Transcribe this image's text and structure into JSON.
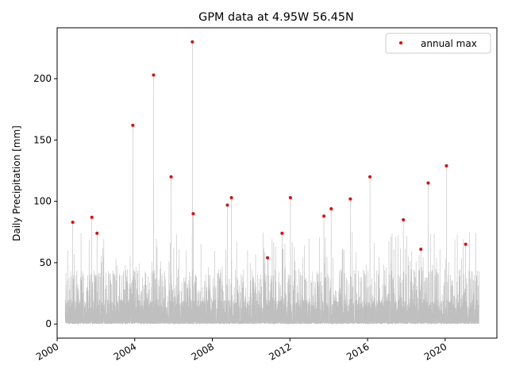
{
  "chart_data": {
    "type": "line",
    "title": "GPM data at 4.95W 56.45N",
    "xlabel": "",
    "ylabel": "Daily Precipitation [mm]",
    "xlim": [
      "2000-01-01",
      "2022-09-01"
    ],
    "ylim": [
      -11.5,
      241.5
    ],
    "x_ticks": [
      "2000",
      "2004",
      "2008",
      "2012",
      "2016",
      "2020"
    ],
    "y_ticks": [
      0,
      50,
      100,
      150,
      200
    ],
    "grid": false,
    "legend_position": "upper right",
    "series": [
      {
        "style": "line",
        "color": "#bfbfbf",
        "x_range": [
          "2000-06-01",
          "2021-09-30"
        ],
        "x": [
          "2000-10-20",
          "2001-10-15",
          "2002-01-20",
          "2003-11-25",
          "2004-12-20",
          "2005-11-15",
          "2006-12-20",
          "2007-01-05",
          "2008-10-10",
          "2008-12-25",
          "2010-11-05",
          "2011-08-05",
          "2012-01-10",
          "2013-10-01",
          "2014-02-15",
          "2015-02-10",
          "2016-02-15",
          "2017-11-05",
          "2018-10-01",
          "2019-02-15",
          "2020-01-25",
          "2021-01-20"
        ],
        "y": [
          83,
          87,
          74,
          162,
          203,
          120,
          230,
          90,
          97,
          103,
          54,
          74,
          103,
          88,
          94,
          102,
          120,
          85,
          61,
          115,
          129,
          65
        ]
      },
      {
        "name": "annual max",
        "style": "points",
        "color": "#ff0000",
        "x": [
          "2000-10-20",
          "2001-10-15",
          "2002-01-20",
          "2003-11-25",
          "2004-12-20",
          "2005-11-15",
          "2006-12-20",
          "2007-01-05",
          "2008-10-10",
          "2008-12-25",
          "2010-11-05",
          "2011-08-05",
          "2012-01-10",
          "2013-10-01",
          "2014-02-15",
          "2015-02-10",
          "2016-02-15",
          "2017-11-05",
          "2018-10-01",
          "2019-02-15",
          "2020-01-25",
          "2021-01-20"
        ],
        "y": [
          83,
          87,
          74,
          162,
          203,
          120,
          230,
          90,
          97,
          103,
          54,
          74,
          103,
          88,
          94,
          102,
          120,
          85,
          61,
          115,
          129,
          65
        ]
      }
    ]
  }
}
